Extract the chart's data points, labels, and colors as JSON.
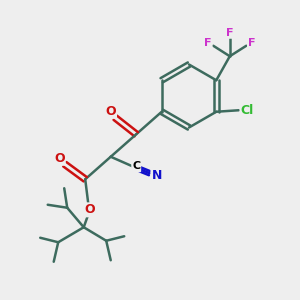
{
  "bg_color": "#eeeeee",
  "bond_color": "#3d6b5e",
  "bond_width": 1.8,
  "atom_colors": {
    "O": "#cc1111",
    "N": "#1111cc",
    "Cl": "#33bb33",
    "F": "#cc33cc",
    "C_label": "#000000"
  },
  "fig_size": [
    3.0,
    3.0
  ],
  "dpi": 100
}
